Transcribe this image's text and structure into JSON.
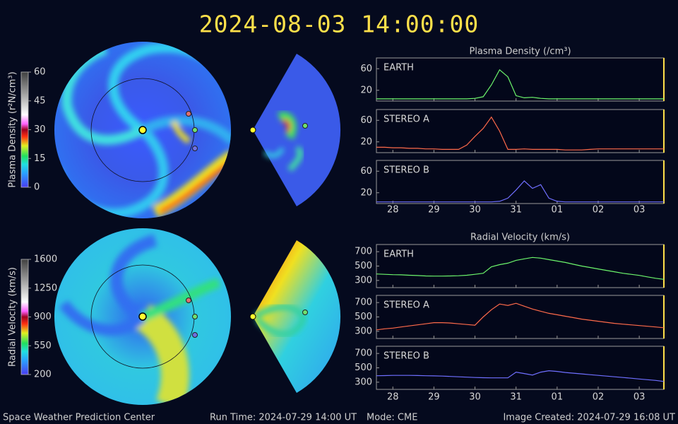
{
  "header": {
    "title": "2024-08-03 14:00:00"
  },
  "footer": {
    "left": "Space Weather Prediction Center",
    "run_time": "Run Time: 2024-07-29 14:00 UT",
    "mode": "Mode: CME",
    "created": "Image Created: 2024-07-29 16:08 UT"
  },
  "colorbars": [
    {
      "label": "Plasma Density (r²N/cm³)",
      "lim": [
        0,
        60
      ],
      "ticks": [
        0,
        15,
        30,
        45,
        60
      ]
    },
    {
      "label": "Radial Velocity (km/s)",
      "lim": [
        200,
        1600
      ],
      "ticks": [
        200,
        550,
        900,
        1250,
        1600
      ]
    }
  ],
  "chart_data": [
    {
      "type": "line",
      "title": "Plasma Density (/cm³)",
      "x": [
        27.6,
        27.8,
        28,
        28.2,
        28.4,
        28.6,
        28.8,
        29,
        29.2,
        29.4,
        29.6,
        29.8,
        30,
        30.2,
        30.4,
        30.6,
        30.8,
        31,
        31.2,
        31.4,
        31.6,
        31.8,
        32,
        32.2,
        32.4,
        32.6,
        32.8,
        33,
        33.2,
        33.4,
        33.6,
        33.8,
        34,
        34.2,
        34.4,
        34.6
      ],
      "xlim": [
        27.6,
        34.6
      ],
      "xticks": [
        28,
        29,
        30,
        31,
        {
          "value": 32,
          "label": "01"
        },
        {
          "value": 33,
          "label": "02"
        },
        {
          "value": 34,
          "label": "03"
        }
      ],
      "ylim": [
        0,
        80
      ],
      "yticks": [
        20,
        60
      ],
      "series": [
        {
          "name": "EARTH",
          "color": "#6cf56c",
          "values": [
            4,
            4,
            4,
            4,
            4,
            4,
            4,
            4,
            4,
            4,
            4,
            4,
            5,
            8,
            30,
            58,
            45,
            10,
            6,
            7,
            5,
            4,
            4,
            4,
            4,
            4,
            4,
            4,
            4,
            4,
            4,
            4,
            4,
            4,
            4,
            4
          ]
        },
        {
          "name": "STEREO A",
          "color": "#ff6a4a",
          "values": [
            10,
            10,
            9,
            9,
            8,
            8,
            7,
            7,
            6,
            6,
            6,
            14,
            30,
            45,
            66,
            40,
            6,
            6,
            7,
            6,
            6,
            6,
            6,
            5,
            5,
            5,
            6,
            7,
            7,
            7,
            7,
            7,
            7,
            7,
            7,
            7
          ]
        },
        {
          "name": "STEREO B",
          "color": "#6f6fff",
          "values": [
            3,
            3,
            3,
            3,
            3,
            3,
            3,
            3,
            3,
            3,
            3,
            3,
            3,
            3,
            3,
            4,
            10,
            25,
            42,
            28,
            35,
            10,
            4,
            3,
            3,
            3,
            3,
            3,
            3,
            3,
            3,
            3,
            3,
            3,
            3,
            3
          ]
        }
      ]
    },
    {
      "type": "line",
      "title": "Radial Velocity (km/s)",
      "x": [
        27.6,
        27.8,
        28,
        28.2,
        28.4,
        28.6,
        28.8,
        29,
        29.2,
        29.4,
        29.6,
        29.8,
        30,
        30.2,
        30.4,
        30.6,
        30.8,
        31,
        31.2,
        31.4,
        31.6,
        31.8,
        32,
        32.2,
        32.4,
        32.6,
        32.8,
        33,
        33.2,
        33.4,
        33.6,
        33.8,
        34,
        34.2,
        34.4,
        34.6
      ],
      "xlim": [
        27.6,
        34.6
      ],
      "xticks": [
        28,
        29,
        30,
        31,
        {
          "value": 32,
          "label": "01"
        },
        {
          "value": 33,
          "label": "02"
        },
        {
          "value": 34,
          "label": "03"
        }
      ],
      "ylim": [
        200,
        800
      ],
      "yticks": [
        300,
        500,
        700
      ],
      "series": [
        {
          "name": "EARTH",
          "color": "#6cf56c",
          "values": [
            390,
            385,
            380,
            378,
            372,
            368,
            362,
            360,
            360,
            362,
            365,
            372,
            385,
            400,
            490,
            520,
            540,
            580,
            600,
            620,
            610,
            590,
            570,
            550,
            525,
            500,
            480,
            460,
            440,
            420,
            400,
            385,
            370,
            350,
            330,
            315
          ]
        },
        {
          "name": "STEREO A",
          "color": "#ff6a4a",
          "values": [
            320,
            335,
            345,
            360,
            375,
            390,
            405,
            420,
            420,
            415,
            405,
            395,
            385,
            500,
            600,
            680,
            660,
            690,
            650,
            610,
            580,
            550,
            530,
            510,
            490,
            470,
            455,
            440,
            425,
            410,
            400,
            390,
            380,
            370,
            360,
            350
          ]
        },
        {
          "name": "STEREO B",
          "color": "#6f6fff",
          "values": [
            390,
            392,
            395,
            395,
            395,
            393,
            390,
            388,
            385,
            380,
            375,
            370,
            365,
            362,
            360,
            360,
            360,
            440,
            420,
            400,
            440,
            460,
            450,
            435,
            425,
            415,
            405,
            395,
            385,
            375,
            365,
            355,
            345,
            335,
            325,
            310
          ]
        }
      ]
    }
  ]
}
